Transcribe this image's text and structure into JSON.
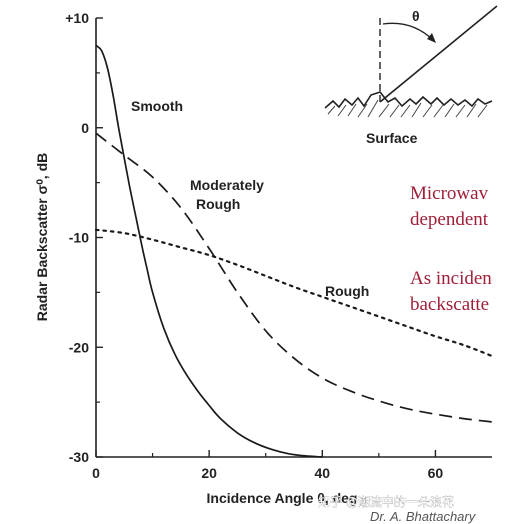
{
  "chart_data": {
    "type": "line",
    "title": "",
    "xlabel": "Incidence Angle θ, deg",
    "ylabel": "Radar Backscatter σ⁰, dB",
    "xlim": [
      0,
      70
    ],
    "ylim": [
      -30,
      10
    ],
    "x_ticks": [
      "0",
      "20",
      "40",
      "60"
    ],
    "y_ticks": [
      "+10",
      "0",
      "-10",
      "-20",
      "-30"
    ],
    "series": [
      {
        "name": "Smooth",
        "style": "solid",
        "x": [
          0,
          1,
          2,
          3,
          4,
          5,
          6,
          7,
          8,
          9,
          10,
          12,
          14,
          16,
          18,
          20,
          22,
          25,
          28,
          31,
          34,
          37,
          40
        ],
        "y": [
          7.5,
          7.0,
          5.5,
          3.0,
          0.0,
          -2.8,
          -5.5,
          -8.0,
          -10.5,
          -12.8,
          -15.0,
          -18.3,
          -20.7,
          -22.5,
          -24.0,
          -25.3,
          -26.5,
          -27.8,
          -28.7,
          -29.3,
          -29.7,
          -29.9,
          -30.0
        ]
      },
      {
        "name": "Moderately Rough",
        "style": "dashed",
        "x": [
          0,
          5,
          10,
          15,
          20,
          25,
          30,
          35,
          40,
          45,
          50,
          55,
          60,
          65,
          70
        ],
        "y": [
          -0.5,
          -2.5,
          -4.5,
          -7.3,
          -11.0,
          -15.0,
          -18.5,
          -21.0,
          -22.8,
          -24.0,
          -24.9,
          -25.6,
          -26.1,
          -26.5,
          -26.8
        ]
      },
      {
        "name": "Rough",
        "style": "dotted",
        "x": [
          0,
          5,
          10,
          15,
          20,
          25,
          30,
          35,
          40,
          45,
          50,
          55,
          60,
          65,
          70
        ],
        "y": [
          -9.3,
          -9.6,
          -10.2,
          -10.9,
          -11.6,
          -12.5,
          -13.5,
          -14.5,
          -15.4,
          -16.3,
          -17.2,
          -18.1,
          -19.0,
          -19.8,
          -20.8
        ]
      }
    ]
  },
  "annotations": {
    "smooth_label": "Smooth",
    "moderately_label_1": "Moderately",
    "moderately_label_2": "Rough",
    "rough_label": "Rough"
  },
  "inset": {
    "theta_label": "θ",
    "surface_label": "Surface"
  },
  "side_notes": {
    "line1": "Microwav",
    "line2": "dependent",
    "line3": "As inciden",
    "line4": "backscatte"
  },
  "credit": "Dr. A. Bhattachary",
  "watermark": "知乎 @潮流中的一朵浪花"
}
